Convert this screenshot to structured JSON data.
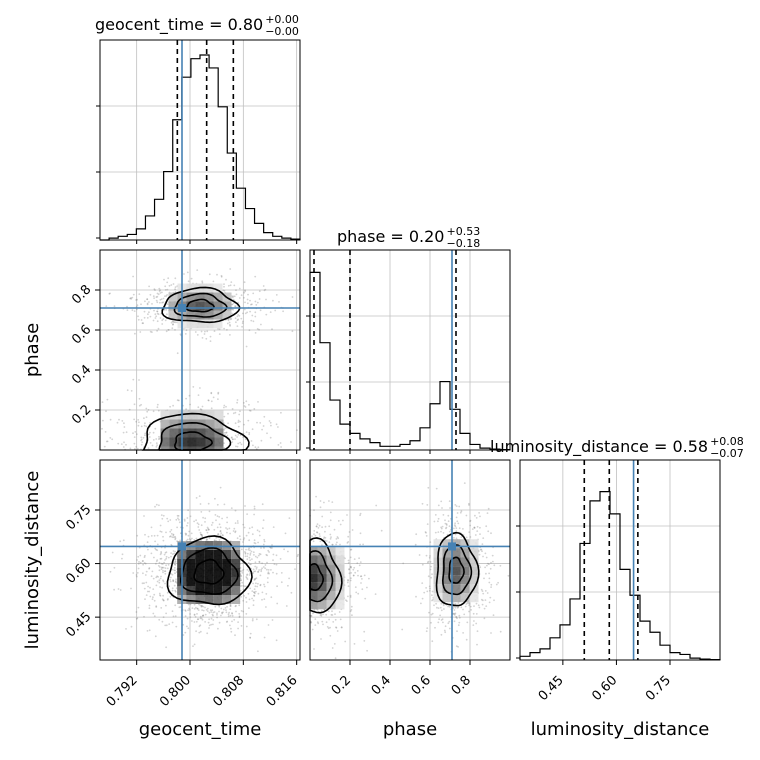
{
  "chart_data": {
    "type": "corner",
    "parameters": [
      "geocent_time",
      "phase",
      "luminosity_distance"
    ],
    "truths": {
      "geocent_time": 0.7988,
      "phase": 0.71,
      "luminosity_distance": 0.648
    },
    "colors": {
      "truth": "#4682b4",
      "hist": "#000000",
      "grid": "#c0c0c0",
      "points": "#808080"
    },
    "grid": true,
    "titles": [
      {
        "param": "geocent_time",
        "text": "geocent_time = 0.80",
        "plus": "+0.00",
        "minus": "−0.00"
      },
      {
        "param": "phase",
        "text": "phase = 0.20",
        "plus": "+0.53",
        "minus": "−0.18"
      },
      {
        "param": "luminosity_distance",
        "text": "luminosity_distance = 0.58",
        "plus": "+0.08",
        "minus": "−0.07"
      }
    ],
    "ranges": {
      "geocent_time": [
        0.7865,
        0.8165
      ],
      "phase": [
        0.0,
        1.0
      ],
      "luminosity_distance": [
        0.33,
        0.89
      ]
    },
    "ticks": {
      "geocent_time": [
        "0.792",
        "0.800",
        "0.808",
        "0.816"
      ],
      "phase_x": [
        "0.2",
        "0.4",
        "0.6",
        "0.8"
      ],
      "phase_y": [
        "0.2",
        "0.4",
        "0.6",
        "0.8"
      ],
      "luminosity_distance": [
        "0.45",
        "0.60",
        "0.75"
      ]
    },
    "quantiles": {
      "geocent_time": [
        0.7981,
        0.8025,
        0.8065
      ],
      "phase": [
        0.02,
        0.2,
        0.73
      ],
      "luminosity_distance": [
        0.51,
        0.58,
        0.66
      ]
    },
    "histograms": {
      "geocent_time": {
        "range": [
          0.7865,
          0.8165
        ],
        "counts": [
          0,
          0.01,
          0.02,
          0.03,
          0.06,
          0.13,
          0.22,
          0.37,
          0.65,
          0.88,
          0.98,
          1.0,
          0.93,
          0.72,
          0.47,
          0.28,
          0.17,
          0.09,
          0.04,
          0.02,
          0.01,
          0.005
        ]
      },
      "phase": {
        "range": [
          0.0,
          1.0
        ],
        "counts": [
          0.96,
          0.58,
          0.27,
          0.14,
          0.09,
          0.06,
          0.04,
          0.02,
          0.02,
          0.03,
          0.05,
          0.12,
          0.25,
          0.37,
          0.22,
          0.09,
          0.03,
          0.01,
          0.005,
          0.002
        ]
      },
      "luminosity_distance": {
        "range": [
          0.33,
          0.89
        ],
        "counts": [
          0.02,
          0.04,
          0.06,
          0.12,
          0.19,
          0.33,
          0.63,
          0.86,
          0.91,
          0.79,
          0.49,
          0.35,
          0.21,
          0.15,
          0.08,
          0.04,
          0.03,
          0.01,
          0.005,
          0.002
        ]
      }
    },
    "pairs": [
      {
        "x": "geocent_time",
        "y": "phase",
        "modes": [
          {
            "cx": 0.8015,
            "cy": 0.72,
            "sx": 0.0033,
            "sy": 0.05,
            "w": 0.45
          },
          {
            "cx": 0.8003,
            "cy": 0.04,
            "sx": 0.0045,
            "sy": 0.08,
            "w": 0.55
          }
        ]
      },
      {
        "x": "geocent_time",
        "y": "luminosity_distance",
        "modes": [
          {
            "cx": 0.8028,
            "cy": 0.575,
            "sx": 0.0036,
            "sy": 0.055,
            "w": 1.0
          }
        ]
      },
      {
        "x": "phase",
        "y": "luminosity_distance",
        "modes": [
          {
            "cx": 0.015,
            "cy": 0.56,
            "sx": 0.08,
            "sy": 0.06,
            "w": 0.55
          },
          {
            "cx": 0.73,
            "cy": 0.58,
            "sx": 0.06,
            "sy": 0.06,
            "w": 0.45
          }
        ]
      }
    ]
  }
}
